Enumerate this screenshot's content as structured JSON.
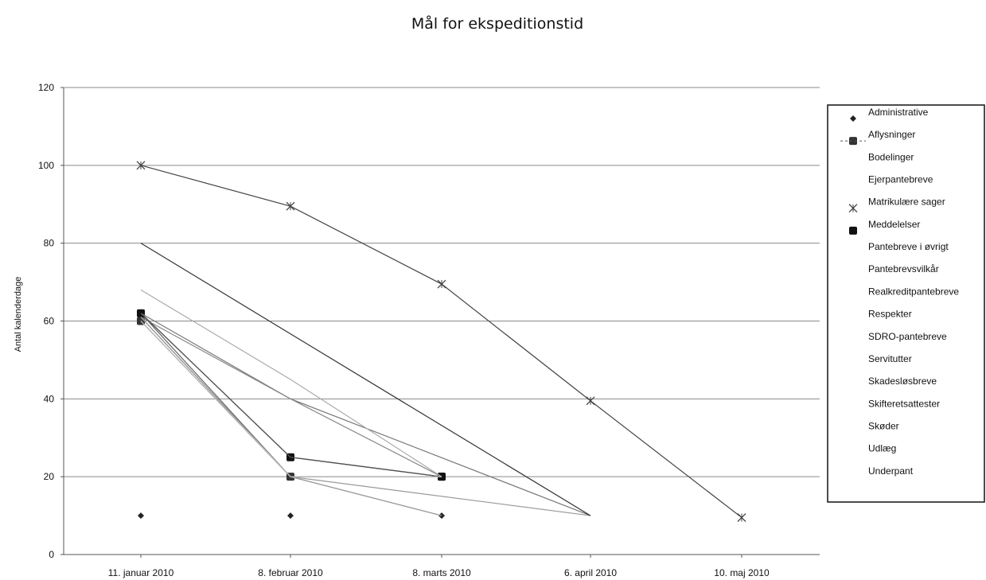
{
  "chart_data": {
    "type": "line",
    "title": "Mål for ekspeditionstid",
    "xlabel": "",
    "ylabel": "Antal kalenderdage",
    "categories": [
      "11. januar 2010",
      "8. februar 2010",
      "8. marts 2010",
      "6. april 2010",
      "10. maj 2010"
    ],
    "ylim": [
      0,
      120
    ],
    "yticks": [
      0,
      20,
      40,
      60,
      80,
      100,
      120
    ],
    "grid": true,
    "legend_position": "right",
    "series": [
      {
        "name": "Administrative",
        "values": [
          10,
          10,
          10,
          null,
          null
        ],
        "color": "#222222",
        "marker": "diamond",
        "line": false
      },
      {
        "name": "Aflysninger",
        "values": [
          60,
          20,
          20,
          null,
          null
        ],
        "color": "#333333",
        "marker": "square",
        "line": true
      },
      {
        "name": "Bodelinger",
        "values": [
          62,
          20,
          20,
          null,
          null
        ],
        "color": "#666666",
        "marker": "none",
        "line": true
      },
      {
        "name": "Ejerpantebreve",
        "values": [
          61,
          20,
          20,
          null,
          null
        ],
        "color": "#777777",
        "marker": "none",
        "line": true
      },
      {
        "name": "Matrikulære sager",
        "values": [
          100,
          89.5,
          69.5,
          39.5,
          9.5
        ],
        "color": "#444444",
        "marker": "x",
        "line": true
      },
      {
        "name": "Meddelelser",
        "values": [
          62,
          25,
          20,
          null,
          null
        ],
        "color": "#111111",
        "marker": "square",
        "line": true
      },
      {
        "name": "Pantebreve i øvrigt",
        "values": [
          60,
          20,
          20,
          null,
          null
        ],
        "color": "#888888",
        "marker": "none",
        "line": true
      },
      {
        "name": "Pantebrevsvilkår",
        "values": [
          61,
          20,
          20,
          null,
          null
        ],
        "color": "#999999",
        "marker": "none",
        "line": true
      },
      {
        "name": "Realkreditpantebreve",
        "values": [
          60,
          20,
          10,
          null,
          null
        ],
        "color": "#aaaaaa",
        "marker": "none",
        "line": true
      },
      {
        "name": "Respekter",
        "values": [
          null,
          20,
          null,
          10,
          null
        ],
        "color": "#999999",
        "marker": "none",
        "line": true
      },
      {
        "name": "SDRO-pantebreve",
        "values": [
          62,
          40,
          null,
          10,
          null
        ],
        "color": "#777777",
        "marker": "none",
        "line": true
      },
      {
        "name": "Servitutter",
        "values": [
          80,
          null,
          null,
          10,
          null
        ],
        "color": "#333333",
        "marker": "none",
        "line": true
      },
      {
        "name": "Skadesløsbreve",
        "values": [
          61,
          40,
          20,
          null,
          null
        ],
        "color": "#888888",
        "marker": "none",
        "line": true
      },
      {
        "name": "Skifteretsattester",
        "values": [
          62,
          25,
          20,
          null,
          null
        ],
        "color": "#555555",
        "marker": "none",
        "line": true
      },
      {
        "name": "Skøder",
        "values": [
          68,
          45,
          20,
          null,
          null
        ],
        "color": "#aaaaaa",
        "marker": "none",
        "line": true
      },
      {
        "name": "Udlæg",
        "values": [
          61,
          20,
          10,
          null,
          null
        ],
        "color": "#999999",
        "marker": "none",
        "line": true
      },
      {
        "name": "Underpant",
        "values": [
          60,
          20,
          20,
          null,
          null
        ],
        "color": "#bbbbbb",
        "marker": "none",
        "line": true
      }
    ]
  }
}
